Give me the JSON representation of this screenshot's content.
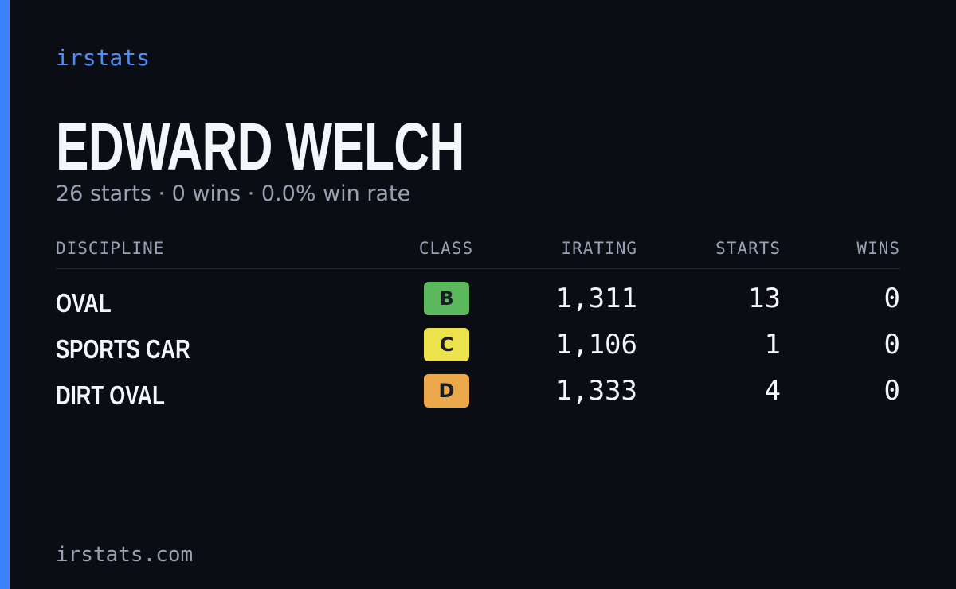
{
  "brand": "irstats",
  "header": {
    "title": "EDWARD WELCH",
    "subtitle": "26 starts · 0 wins · 0.0% win rate"
  },
  "table": {
    "columns": [
      "DISCIPLINE",
      "CLASS",
      "IRATING",
      "STARTS",
      "WINS"
    ],
    "rows": [
      {
        "discipline": "OVAL",
        "class": "B",
        "class_color": "#5cb85c",
        "irating": "1,311",
        "starts": 13,
        "wins": 0
      },
      {
        "discipline": "SPORTS CAR",
        "class": "C",
        "class_color": "#ebe24d",
        "irating": "1,106",
        "starts": 1,
        "wins": 0
      },
      {
        "discipline": "DIRT OVAL",
        "class": "D",
        "class_color": "#eba94b",
        "irating": "1,333",
        "starts": 4,
        "wins": 0
      }
    ]
  },
  "footer": "irstats.com"
}
